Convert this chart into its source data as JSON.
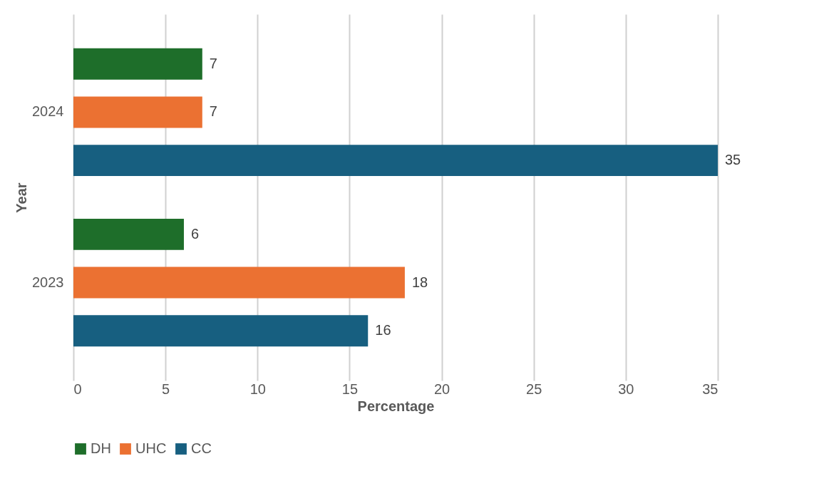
{
  "chart_data": {
    "type": "bar",
    "orientation": "horizontal",
    "xlabel": "Percentage",
    "ylabel": "Year",
    "categories": [
      "2024",
      "2023"
    ],
    "series": [
      {
        "name": "DH",
        "color": "#1e6e2a",
        "values": [
          7,
          6
        ]
      },
      {
        "name": "UHC",
        "color": "#eb7132",
        "values": [
          7,
          18
        ]
      },
      {
        "name": "CC",
        "color": "#175f80",
        "values": [
          35,
          16
        ]
      }
    ],
    "xlim": [
      0,
      35
    ],
    "xticks": [
      0,
      5,
      10,
      15,
      20,
      25,
      30,
      35
    ],
    "grid": "x",
    "legend": "bottom",
    "data_labels": true
  }
}
